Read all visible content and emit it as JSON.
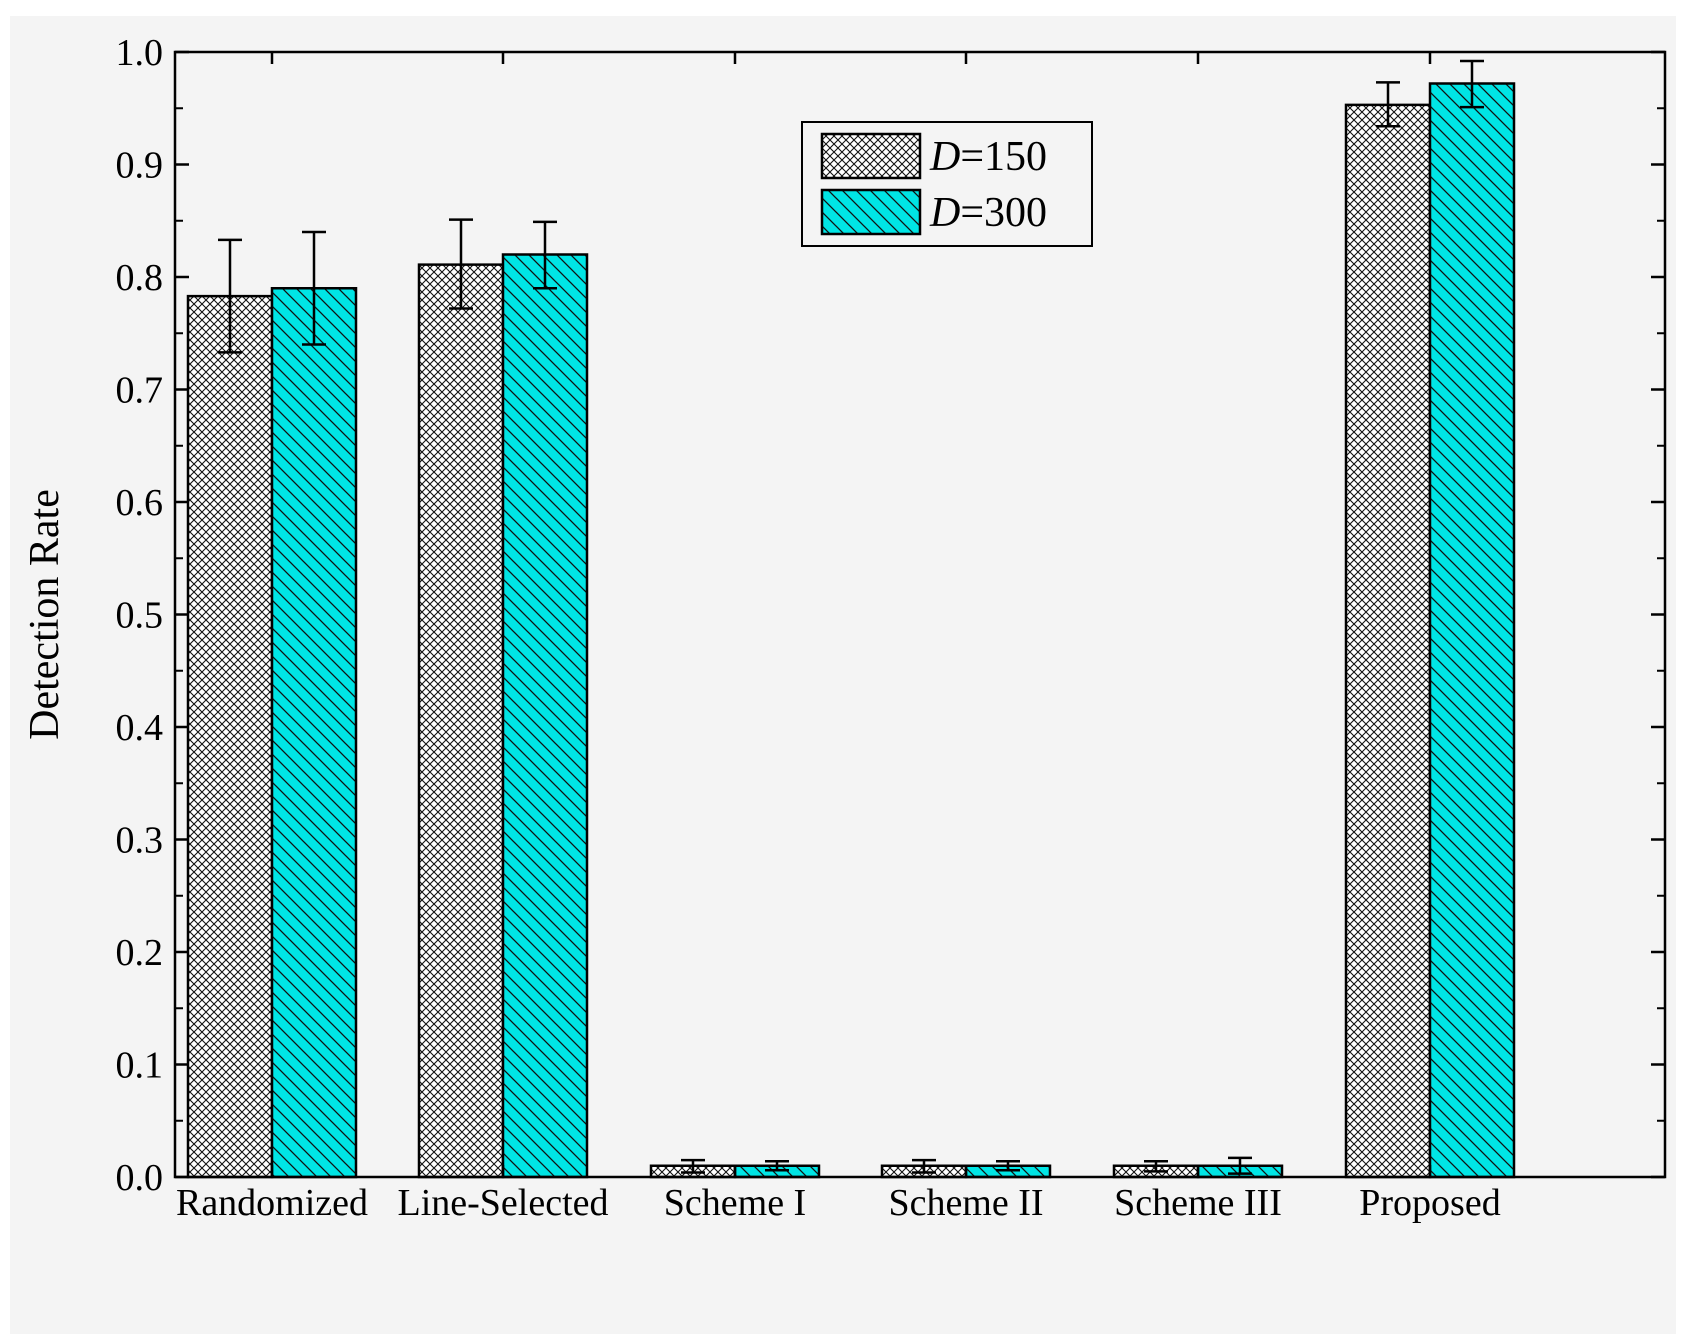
{
  "chart_data": {
    "type": "bar",
    "title": "",
    "xlabel": "",
    "ylabel": "Detection Rate",
    "ylim": [
      0.0,
      1.0
    ],
    "yticks": [
      "0.0",
      "0.1",
      "0.2",
      "0.3",
      "0.4",
      "0.5",
      "0.6",
      "0.7",
      "0.8",
      "0.9",
      "1.0"
    ],
    "categories": [
      "Randomized",
      "Line-Selected",
      "Scheme I",
      "Scheme II",
      "Scheme III",
      "Proposed"
    ],
    "series": [
      {
        "name": "D=150",
        "name_italic": "D",
        "name_rest": "=150",
        "values": [
          0.783,
          0.811,
          0.01,
          0.01,
          0.01,
          0.953
        ],
        "error_low": [
          0.733,
          0.772,
          0.004,
          0.004,
          0.005,
          0.934
        ],
        "error_high": [
          0.833,
          0.851,
          0.015,
          0.015,
          0.014,
          0.973
        ],
        "fill": "#ffffff",
        "pattern": "crosshatch"
      },
      {
        "name": "D=300",
        "name_italic": "D",
        "name_rest": "=300",
        "values": [
          0.79,
          0.82,
          0.01,
          0.01,
          0.01,
          0.972
        ],
        "error_low": [
          0.74,
          0.79,
          0.006,
          0.006,
          0.003,
          0.951
        ],
        "error_high": [
          0.84,
          0.849,
          0.014,
          0.014,
          0.017,
          0.992
        ],
        "fill": "#00e5e5",
        "pattern": "diagonal"
      }
    ],
    "legend_position": "top-center",
    "grid": false
  }
}
